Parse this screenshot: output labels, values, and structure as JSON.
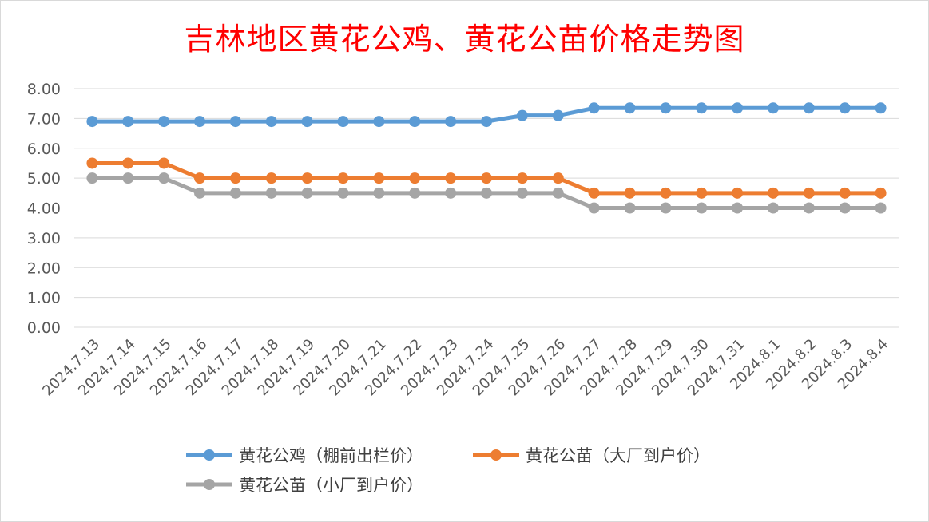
{
  "chart_data": {
    "type": "line",
    "title": "吉林地区黄花公鸡、黄花公苗价格走势图",
    "xlabel": "",
    "ylabel": "",
    "ylim": [
      0,
      8
    ],
    "y_ticks": [
      "0.00",
      "1.00",
      "2.00",
      "3.00",
      "4.00",
      "5.00",
      "6.00",
      "7.00",
      "8.00"
    ],
    "grid": true,
    "legend_position": "bottom",
    "categories": [
      "2024.7.13",
      "2024.7.14",
      "2024.7.15",
      "2024.7.16",
      "2024.7.17",
      "2024.7.18",
      "2024.7.19",
      "2024.7.20",
      "2024.7.21",
      "2024.7.22",
      "2024.7.23",
      "2024.7.24",
      "2024.7.25",
      "2024.7.26",
      "2024.7.27",
      "2024.7.28",
      "2024.7.29",
      "2024.7.30",
      "2024.7.31",
      "2024.8.1",
      "2024.8.2",
      "2024.8.3",
      "2024.8.4"
    ],
    "series": [
      {
        "name": "黄花公鸡（棚前出栏价）",
        "color": "#5b9bd5",
        "values": [
          6.9,
          6.9,
          6.9,
          6.9,
          6.9,
          6.9,
          6.9,
          6.9,
          6.9,
          6.9,
          6.9,
          6.9,
          7.1,
          7.1,
          7.35,
          7.35,
          7.35,
          7.35,
          7.35,
          7.35,
          7.35,
          7.35,
          7.35
        ]
      },
      {
        "name": "黄花公苗（大厂到户价）",
        "color": "#ed7d31",
        "values": [
          5.5,
          5.5,
          5.5,
          5.0,
          5.0,
          5.0,
          5.0,
          5.0,
          5.0,
          5.0,
          5.0,
          5.0,
          5.0,
          5.0,
          4.5,
          4.5,
          4.5,
          4.5,
          4.5,
          4.5,
          4.5,
          4.5,
          4.5
        ]
      },
      {
        "name": "黄花公苗（小厂到户价）",
        "color": "#a5a5a5",
        "values": [
          5.0,
          5.0,
          5.0,
          4.5,
          4.5,
          4.5,
          4.5,
          4.5,
          4.5,
          4.5,
          4.5,
          4.5,
          4.5,
          4.5,
          4.0,
          4.0,
          4.0,
          4.0,
          4.0,
          4.0,
          4.0,
          4.0,
          4.0
        ]
      }
    ]
  }
}
